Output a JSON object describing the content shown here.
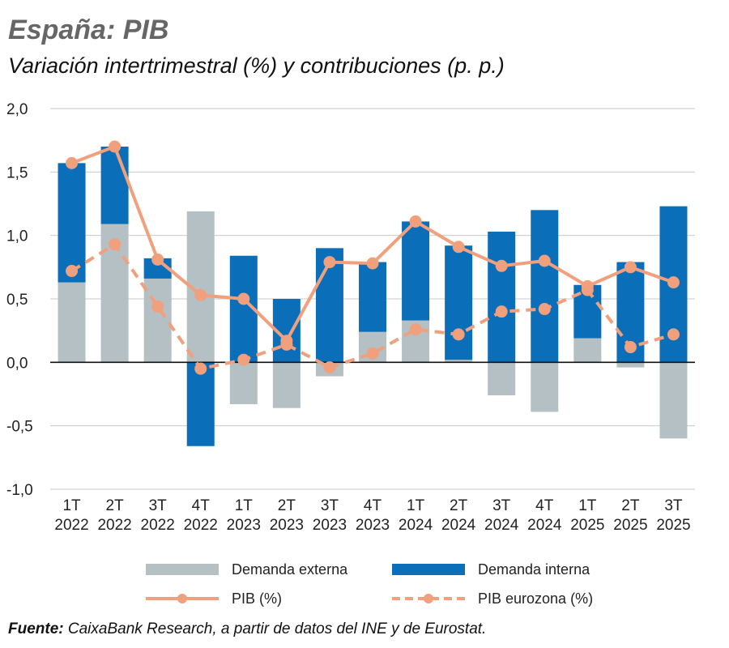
{
  "header": {
    "title": "España: PIB",
    "subtitle": "Variación intertrimestral (%) y contribuciones (p. p.)"
  },
  "colors": {
    "external": "#b4c0c3",
    "internal": "#0a6eb8",
    "pib": "#f0a07c",
    "pib_euro": "#f0a07c",
    "grid": "#c9c9c9"
  },
  "chart_data": {
    "type": "bar",
    "stacked": true,
    "categories": [
      [
        "1T",
        "2022"
      ],
      [
        "2T",
        "2022"
      ],
      [
        "3T",
        "2022"
      ],
      [
        "4T",
        "2022"
      ],
      [
        "1T",
        "2023"
      ],
      [
        "2T",
        "2023"
      ],
      [
        "3T",
        "2023"
      ],
      [
        "4T",
        "2023"
      ],
      [
        "1T",
        "2024"
      ],
      [
        "2T",
        "2024"
      ],
      [
        "3T",
        "2024"
      ],
      [
        "4T",
        "2024"
      ],
      [
        "1T",
        "2025"
      ],
      [
        "2T",
        "2025"
      ],
      [
        "3T",
        "2025"
      ]
    ],
    "ylim": [
      -1.0,
      2.0
    ],
    "yticks": [
      "2,0",
      "1,5",
      "1,0",
      "0,5",
      "0,0",
      "-0,5",
      "-1,0"
    ],
    "ytick_values": [
      2.0,
      1.5,
      1.0,
      0.5,
      0.0,
      -0.5,
      -1.0
    ],
    "grid": true,
    "series": [
      {
        "name": "Demanda externa",
        "kind": "bar",
        "values": [
          0.63,
          1.09,
          0.66,
          1.19,
          -0.33,
          -0.36,
          -0.11,
          0.24,
          0.33,
          0.02,
          -0.26,
          -0.39,
          0.19,
          -0.04,
          -0.6
        ]
      },
      {
        "name": "Demanda interna",
        "kind": "bar",
        "values": [
          0.94,
          0.61,
          0.16,
          -0.66,
          0.84,
          0.5,
          0.9,
          0.55,
          0.78,
          0.9,
          1.03,
          1.2,
          0.42,
          0.79,
          1.23
        ]
      },
      {
        "name": "PIB (%)",
        "kind": "line",
        "style": "solid",
        "values": [
          1.57,
          1.7,
          0.81,
          0.53,
          0.5,
          0.17,
          0.79,
          0.78,
          1.11,
          0.91,
          0.76,
          0.8,
          0.6,
          0.75,
          0.63
        ]
      },
      {
        "name": "PIB eurozona (%)",
        "kind": "line",
        "style": "dashed",
        "values": [
          0.72,
          0.93,
          0.44,
          -0.05,
          0.02,
          0.14,
          -0.04,
          0.07,
          0.26,
          0.22,
          0.4,
          0.42,
          0.57,
          0.12,
          0.22
        ]
      }
    ]
  },
  "legend": {
    "external": "Demanda externa",
    "internal": "Demanda interna",
    "pib": "PIB (%)",
    "pib_euro": "PIB eurozona (%)"
  },
  "source": {
    "label": "Fuente:",
    "text": " CaixaBank Research, a partir de datos del INE y de Eurostat."
  }
}
